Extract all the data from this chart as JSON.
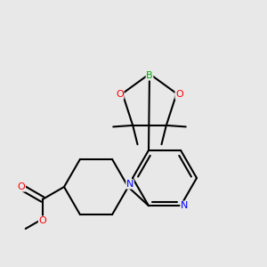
{
  "background_color": "#e8e8e8",
  "atom_colors": {
    "C": "#000000",
    "N": "#0000ff",
    "O": "#ff0000",
    "B": "#00aa00"
  },
  "bond_color": "#000000",
  "bond_width": 1.5,
  "figsize": [
    3.0,
    3.0
  ],
  "dpi": 100,
  "scale": 1.0
}
